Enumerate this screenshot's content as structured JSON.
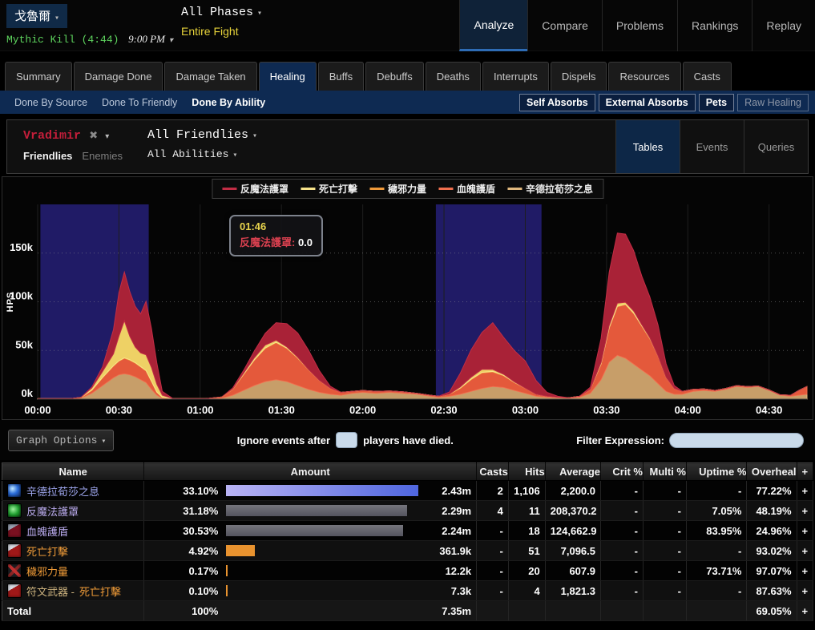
{
  "header": {
    "boss_name": "戈魯爾",
    "kill_info": "Mythic Kill (4:44)",
    "time": "9:00 PM",
    "phases": "All Phases",
    "fight_range": "Entire Fight",
    "nav": [
      {
        "label": "Analyze",
        "active": true
      },
      {
        "label": "Compare",
        "active": false
      },
      {
        "label": "Problems",
        "active": false
      },
      {
        "label": "Rankings",
        "active": false
      },
      {
        "label": "Replay",
        "active": false
      }
    ]
  },
  "tabs": [
    "Summary",
    "Damage Done",
    "Damage Taken",
    "Healing",
    "Buffs",
    "Debuffs",
    "Deaths",
    "Interrupts",
    "Dispels",
    "Resources",
    "Casts"
  ],
  "active_tab": "Healing",
  "subtabs": {
    "links": [
      {
        "label": "Done By Source",
        "active": false
      },
      {
        "label": "Done To Friendly",
        "active": false
      },
      {
        "label": "Done By Ability",
        "active": true
      }
    ],
    "toggles": [
      {
        "label": "Self Absorbs",
        "on": true
      },
      {
        "label": "External Absorbs",
        "on": true
      },
      {
        "label": "Pets",
        "on": true
      },
      {
        "label": "Raw Healing",
        "on": false
      }
    ]
  },
  "filterbar": {
    "source_name": "Vradimir",
    "remove_icon": "✖",
    "groups": [
      {
        "label": "Friendlies",
        "active": true
      },
      {
        "label": "Enemies",
        "active": false
      }
    ],
    "target_dropdown": "All Friendlies",
    "ability_dropdown": "All Abilities",
    "views": [
      {
        "label": "Tables",
        "active": true
      },
      {
        "label": "Events",
        "active": false
      },
      {
        "label": "Queries",
        "active": false
      }
    ]
  },
  "chart_data": {
    "type": "area",
    "stacked": true,
    "ylabel": "HPS",
    "unit": "k (HPS)",
    "duration_s": 284,
    "ymax_k": 200,
    "grid": true,
    "legend_position": "top-center",
    "yticks": [
      {
        "v": 0,
        "label": "0k"
      },
      {
        "v": 50,
        "label": "50k"
      },
      {
        "v": 100,
        "label": "100k"
      },
      {
        "v": 150,
        "label": "150k"
      }
    ],
    "xticks": [
      {
        "t": 0,
        "label": "00:00"
      },
      {
        "t": 30,
        "label": "00:30"
      },
      {
        "t": 60,
        "label": "01:00"
      },
      {
        "t": 90,
        "label": "01:30"
      },
      {
        "t": 120,
        "label": "02:00"
      },
      {
        "t": 150,
        "label": "02:30"
      },
      {
        "t": 180,
        "label": "03:00"
      },
      {
        "t": 210,
        "label": "03:30"
      },
      {
        "t": 240,
        "label": "04:00"
      },
      {
        "t": 270,
        "label": "04:30"
      }
    ],
    "phase_bands": [
      {
        "start_s": 1,
        "end_s": 41,
        "color": "#201b66"
      },
      {
        "start_s": 147,
        "end_s": 186,
        "color": "#201b66"
      }
    ],
    "legend_order": [
      "反魔法護罩",
      "死亡打擊",
      "穢邪力量",
      "血魄護盾",
      "辛德拉荀莎之息"
    ],
    "x_s": [
      0,
      12,
      16,
      20,
      24,
      28,
      30,
      32,
      34,
      36,
      38,
      40,
      42,
      44,
      46,
      50,
      56,
      62,
      68,
      72,
      76,
      80,
      84,
      88,
      92,
      96,
      100,
      104,
      108,
      112,
      116,
      120,
      125,
      130,
      135,
      140,
      145,
      148,
      152,
      156,
      160,
      164,
      168,
      172,
      176,
      180,
      184,
      188,
      192,
      196,
      200,
      204,
      208,
      211,
      214,
      217,
      220,
      223,
      226,
      229,
      232,
      235,
      238,
      242,
      246,
      250,
      254,
      258,
      262,
      266,
      270,
      274,
      278,
      281,
      284
    ],
    "series": [
      {
        "name": "辛德拉荀莎之息",
        "fill": "#c79e69",
        "stroke": "#e0b87e",
        "values_k": [
          0.5,
          0.5,
          1,
          6,
          14,
          22,
          25,
          26,
          25,
          23,
          20,
          17,
          10,
          4,
          1,
          0.5,
          0.5,
          0.5,
          1,
          4,
          9,
          14,
          18,
          20,
          18,
          14,
          10,
          7,
          5,
          4,
          6,
          7,
          6,
          7,
          6,
          5,
          3,
          2,
          3,
          5,
          8,
          11,
          13,
          12,
          9,
          6,
          3,
          2,
          1.5,
          1,
          2,
          6,
          20,
          38,
          45,
          42,
          36,
          30,
          24,
          16,
          8,
          5,
          5,
          8,
          9,
          8,
          10,
          13,
          12,
          13,
          9,
          4,
          3,
          4,
          5
        ]
      },
      {
        "name": "血魄護盾",
        "fill": "#e4593b",
        "stroke": "#f06f4e",
        "values_k": [
          0,
          0,
          0.5,
          3,
          8,
          12,
          14,
          16,
          15,
          14,
          13,
          12,
          8,
          3,
          1,
          0,
          0,
          0,
          1,
          6,
          16,
          26,
          34,
          38,
          34,
          28,
          20,
          12,
          6,
          3,
          2,
          2,
          2,
          1.5,
          1.5,
          1,
          1,
          1,
          2,
          6,
          12,
          16,
          15,
          12,
          8,
          5,
          2,
          1,
          0.5,
          0.5,
          1,
          4,
          16,
          35,
          50,
          55,
          52,
          45,
          38,
          28,
          14,
          6,
          3,
          2,
          1.5,
          1,
          1,
          1,
          1,
          0.5,
          0.5,
          0.5,
          1,
          5,
          8
        ]
      },
      {
        "name": "穢邪力量",
        "fill": "#e08a2e",
        "stroke": "#f09a3a",
        "values_k": [
          0,
          0,
          0.3,
          0.5,
          0.5,
          0.5,
          0.5,
          0.5,
          0.5,
          0.5,
          0.5,
          0.5,
          0.5,
          0.3,
          0,
          0,
          0,
          0,
          0.3,
          0.5,
          0.5,
          0.5,
          0.5,
          0.5,
          0.5,
          0.5,
          0.3,
          0.3,
          0.3,
          0,
          0,
          0,
          0,
          0,
          0,
          0,
          0,
          0,
          0.3,
          0.5,
          0.5,
          0.5,
          0.5,
          0.5,
          0.3,
          0.3,
          0,
          0,
          0,
          0,
          0,
          0.3,
          0.5,
          0.5,
          0.5,
          0.5,
          0.5,
          0.5,
          0.5,
          0.3,
          0.3,
          0,
          0,
          0,
          0,
          0,
          0,
          0,
          0,
          0,
          0,
          0,
          0,
          0,
          0
        ]
      },
      {
        "name": "死亡打擊",
        "fill": "#eed165",
        "stroke": "#f7e38a",
        "values_k": [
          0,
          0,
          0,
          2,
          6,
          12,
          25,
          38,
          24,
          16,
          14,
          16,
          14,
          8,
          2,
          0,
          0,
          0,
          0,
          0,
          1,
          2,
          3,
          2,
          1,
          0.5,
          0,
          0,
          0,
          0,
          0,
          0,
          0,
          0,
          0,
          0,
          0,
          0,
          0,
          1,
          2,
          3,
          2,
          1,
          0.5,
          0,
          0,
          0,
          0,
          0,
          0,
          0,
          1,
          2,
          3,
          2,
          2,
          1,
          0.5,
          0,
          0,
          0,
          0,
          0,
          0,
          0,
          0,
          0,
          0,
          0,
          0,
          0,
          0,
          0,
          0
        ]
      },
      {
        "name": "反魔法護罩",
        "fill": "#a92237",
        "stroke": "#c22d45",
        "values_k": [
          0,
          0,
          0,
          1,
          5,
          25,
          45,
          50,
          46,
          42,
          40,
          55,
          40,
          22,
          4,
          0,
          0,
          0,
          0,
          1,
          3,
          7,
          12,
          18,
          24,
          25,
          20,
          10,
          2,
          0,
          0,
          0,
          0,
          0,
          0,
          0,
          0,
          0,
          2,
          14,
          28,
          38,
          48,
          38,
          32,
          28,
          14,
          4,
          1,
          0,
          0,
          2,
          25,
          55,
          72,
          70,
          62,
          50,
          42,
          32,
          14,
          3,
          0,
          0,
          0,
          0,
          0,
          0,
          0,
          0,
          0,
          0,
          0,
          0,
          0
        ]
      }
    ],
    "tooltip": {
      "time": "01:46",
      "series": "反魔法護罩",
      "series_color": "#d8404f",
      "value": "0.0"
    }
  },
  "graph_controls": {
    "options_button": "Graph Options",
    "ignore_prefix": "Ignore events after",
    "ignore_suffix": "players have died.",
    "filter_label": "Filter Expression:",
    "ignore_value": "",
    "filter_value": ""
  },
  "table": {
    "columns": [
      "Name",
      "Amount",
      "Casts",
      "Hits",
      "Average",
      "Crit %",
      "Multi %",
      "Uptime %",
      "Overheal",
      "+"
    ],
    "max_pct": 33.1,
    "rows": [
      {
        "icon": "icon-frost",
        "name": [
          {
            "text": "辛德拉荀莎之息",
            "color": "#9fa7ef"
          }
        ],
        "pct": "33.10%",
        "bar": "bar-blue",
        "amount": "2.43m",
        "casts": "2",
        "hits": "1,106",
        "average": "2,200.0",
        "crit": "-",
        "multi": "-",
        "uptime": "-",
        "overheal": "77.22%",
        "plus": "+"
      },
      {
        "icon": "icon-green",
        "name": [
          {
            "text": "反魔法護罩",
            "color": "#b9aaec"
          }
        ],
        "pct": "31.18%",
        "bar": "bar-gray",
        "amount": "2.29m",
        "casts": "4",
        "hits": "11",
        "average": "208,370.2",
        "crit": "-",
        "multi": "-",
        "uptime": "7.05%",
        "overheal": "48.19%",
        "plus": "+"
      },
      {
        "icon": "icon-shield",
        "name": [
          {
            "text": "血魄護盾",
            "color": "#b9aaec"
          }
        ],
        "pct": "30.53%",
        "bar": "bar-gray",
        "amount": "2.24m",
        "casts": "-",
        "hits": "18",
        "average": "124,662.9",
        "crit": "-",
        "multi": "-",
        "uptime": "83.95%",
        "overheal": "24.96%",
        "plus": "+"
      },
      {
        "icon": "icon-strike",
        "name": [
          {
            "text": "死亡打擊",
            "color": "#ef9b38"
          }
        ],
        "pct": "4.92%",
        "bar": "bar-orange",
        "amount": "361.9k",
        "casts": "-",
        "hits": "51",
        "average": "7,096.5",
        "crit": "-",
        "multi": "-",
        "uptime": "-",
        "overheal": "93.02%",
        "plus": "+"
      },
      {
        "icon": "icon-unholy",
        "name": [
          {
            "text": "穢邪力量",
            "color": "#ef9b38"
          }
        ],
        "pct": "0.17%",
        "bar": "bar-orange",
        "amount": "12.2k",
        "casts": "-",
        "hits": "20",
        "average": "607.9",
        "crit": "-",
        "multi": "-",
        "uptime": "73.71%",
        "overheal": "97.07%",
        "plus": "+"
      },
      {
        "icon": "icon-strike",
        "name": [
          {
            "text": "符文武器 - ",
            "color": "#cdb37f"
          },
          {
            "text": "死亡打擊",
            "color": "#ef9b38"
          }
        ],
        "pct": "0.10%",
        "bar": "bar-orange",
        "amount": "7.3k",
        "casts": "-",
        "hits": "4",
        "average": "1,821.3",
        "crit": "-",
        "multi": "-",
        "uptime": "-",
        "overheal": "87.63%",
        "plus": "+"
      }
    ],
    "total": {
      "label": "Total",
      "pct": "100%",
      "amount": "7.35m",
      "casts": "",
      "hits": "",
      "average": "",
      "crit": "",
      "multi": "",
      "uptime": "",
      "overheal": "69.05%",
      "plus": "+"
    }
  }
}
